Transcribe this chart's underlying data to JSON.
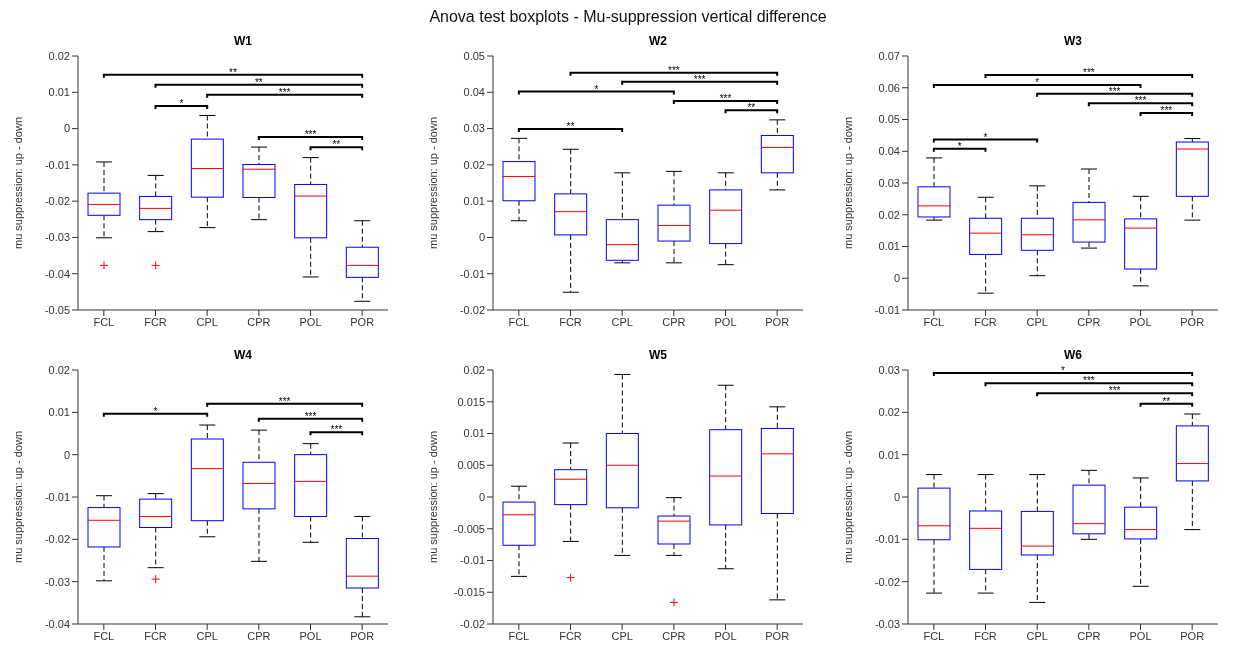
{
  "chart_data": [
    {
      "type": "box",
      "title": "W1",
      "ylabel": "mu suppression: up - down",
      "categories": [
        "FCL",
        "FCR",
        "CPL",
        "CPR",
        "POL",
        "POR"
      ],
      "ylim": [
        -0.05,
        0.02
      ],
      "yticks": [
        -0.05,
        -0.04,
        -0.03,
        -0.02,
        -0.01,
        0,
        0.01,
        0.02
      ],
      "series": [
        {
          "color": "#0000ff",
          "boxes": [
            {
              "low": -0.0301,
              "q1": -0.0239,
              "median": -0.0209,
              "q3": -0.0178,
              "high": -0.0092,
              "outliers": [
                -0.0377
              ]
            },
            {
              "low": -0.0284,
              "q1": -0.0251,
              "median": -0.022,
              "q3": -0.0187,
              "high": -0.0129,
              "outliers": [
                -0.0377
              ]
            },
            {
              "low": -0.0273,
              "q1": -0.0189,
              "median": -0.011,
              "q3": -0.0029,
              "high": 0.0036
            },
            {
              "low": -0.0251,
              "q1": -0.019,
              "median": -0.0112,
              "q3": -0.0099,
              "high": -0.0051
            },
            {
              "low": -0.0409,
              "q1": -0.0301,
              "median": -0.0186,
              "q3": -0.0154,
              "high": -0.008
            },
            {
              "low": -0.0476,
              "q1": -0.041,
              "median": -0.0377,
              "q3": -0.0327,
              "high": -0.0254
            }
          ]
        }
      ],
      "annotations": [
        "Anova test boxplots - Mu-suppression vertical difference",
        "**",
        "**",
        "***",
        "*",
        "***",
        "**"
      ]
    },
    {
      "type": "box",
      "title": "W2",
      "ylabel": "mu suppression: up - down",
      "categories": [
        "FCL",
        "FCR",
        "CPL",
        "CPR",
        "POL",
        "POR"
      ],
      "ylim": [
        -0.02,
        0.05
      ],
      "yticks": [
        -0.02,
        -0.01,
        0,
        0.01,
        0.02,
        0.03,
        0.04,
        0.05
      ],
      "series": [
        {
          "color": "#0000ff",
          "boxes": [
            {
              "low": 0.0046,
              "q1": 0.0101,
              "median": 0.0168,
              "q3": 0.0209,
              "high": 0.0273
            },
            {
              "low": -0.0151,
              "q1": 0.0007,
              "median": 0.0071,
              "q3": 0.012,
              "high": 0.0243
            },
            {
              "low": -0.007,
              "q1": -0.0063,
              "median": -0.002,
              "q3": 0.0049,
              "high": 0.0178
            },
            {
              "low": -0.007,
              "q1": -0.001,
              "median": 0.0033,
              "q3": 0.0089,
              "high": 0.0182
            },
            {
              "low": -0.0075,
              "q1": -0.0017,
              "median": 0.0075,
              "q3": 0.0131,
              "high": 0.0178
            },
            {
              "low": 0.0131,
              "q1": 0.0178,
              "median": 0.0248,
              "q3": 0.0281,
              "high": 0.0324
            }
          ]
        }
      ],
      "annotations": [
        "***",
        "***",
        "*",
        "***",
        "**",
        "**"
      ]
    },
    {
      "type": "box",
      "title": "W3",
      "ylabel": "mu suppression: up - down",
      "categories": [
        "FCL",
        "FCR",
        "CPL",
        "CPR",
        "POL",
        "POR"
      ],
      "ylim": [
        -0.01,
        0.07
      ],
      "yticks": [
        -0.01,
        0,
        0.01,
        0.02,
        0.03,
        0.04,
        0.05,
        0.06,
        0.07
      ],
      "series": [
        {
          "color": "#0000ff",
          "boxes": [
            {
              "low": 0.0183,
              "q1": 0.0193,
              "median": 0.0228,
              "q3": 0.0288,
              "high": 0.0379
            },
            {
              "low": -0.0047,
              "q1": 0.0075,
              "median": 0.0142,
              "q3": 0.0189,
              "high": 0.0255
            },
            {
              "low": 0.0008,
              "q1": 0.0088,
              "median": 0.0137,
              "q3": 0.0189,
              "high": 0.0291
            },
            {
              "low": 0.0095,
              "q1": 0.0114,
              "median": 0.0184,
              "q3": 0.0239,
              "high": 0.0344
            },
            {
              "low": -0.0024,
              "q1": 0.0029,
              "median": 0.0158,
              "q3": 0.0187,
              "high": 0.0258
            },
            {
              "low": 0.0183,
              "q1": 0.0258,
              "median": 0.0407,
              "q3": 0.0429,
              "high": 0.044
            }
          ]
        }
      ],
      "annotations": [
        "***",
        "*",
        "***",
        "***",
        "***",
        "*",
        "*"
      ]
    },
    {
      "type": "box",
      "title": "W4",
      "ylabel": "mu suppression: up - down",
      "categories": [
        "FCL",
        "FCR",
        "CPL",
        "CPR",
        "POL",
        "POR"
      ],
      "ylim": [
        -0.04,
        0.02
      ],
      "yticks": [
        -0.04,
        -0.03,
        -0.02,
        -0.01,
        0,
        0.01,
        0.02
      ],
      "series": [
        {
          "color": "#0000ff",
          "boxes": [
            {
              "low": -0.0298,
              "q1": -0.0218,
              "median": -0.0155,
              "q3": -0.0125,
              "high": -0.0097
            },
            {
              "low": -0.0267,
              "q1": -0.0172,
              "median": -0.0146,
              "q3": -0.0105,
              "high": -0.0092,
              "outliers": [
                -0.0294
              ]
            },
            {
              "low": -0.0194,
              "q1": -0.0156,
              "median": -0.0033,
              "q3": 0.0037,
              "high": 0.007
            },
            {
              "low": -0.0252,
              "q1": -0.0128,
              "median": -0.0068,
              "q3": -0.0018,
              "high": 0.0058
            },
            {
              "low": -0.0207,
              "q1": -0.0146,
              "median": -0.0063,
              "q3": 0,
              "high": 0.0026
            },
            {
              "low": -0.0383,
              "q1": -0.0315,
              "median": -0.0287,
              "q3": -0.0198,
              "high": -0.0146
            }
          ]
        }
      ],
      "annotations": [
        "***",
        "*",
        "***",
        "***"
      ]
    },
    {
      "type": "box",
      "title": "W5",
      "ylabel": "mu suppression: up - down",
      "categories": [
        "FCL",
        "FCR",
        "CPL",
        "CPR",
        "POL",
        "POR"
      ],
      "ylim": [
        -0.02,
        0.02
      ],
      "yticks": [
        -0.02,
        -0.015,
        -0.01,
        -0.005,
        0,
        0.005,
        0.01,
        0.015,
        0.02
      ],
      "series": [
        {
          "color": "#0000ff",
          "boxes": [
            {
              "low": -0.0125,
              "q1": -0.0076,
              "median": -0.0028,
              "q3": -0.0008,
              "high": 0.0017
            },
            {
              "low": -0.007,
              "q1": -0.0012,
              "median": 0.0028,
              "q3": 0.0043,
              "high": 0.0085,
              "outliers": [
                -0.0127
              ]
            },
            {
              "low": -0.0092,
              "q1": -0.0017,
              "median": 0.005,
              "q3": 0.01,
              "high": 0.0193
            },
            {
              "low": -0.0092,
              "q1": -0.0074,
              "median": -0.0038,
              "q3": -0.003,
              "high": -0.0001,
              "outliers": [
                -0.0166
              ]
            },
            {
              "low": -0.0113,
              "q1": -0.0044,
              "median": 0.0033,
              "q3": 0.0106,
              "high": 0.0176
            },
            {
              "low": -0.0162,
              "q1": -0.0026,
              "median": 0.0068,
              "q3": 0.0108,
              "high": 0.0142
            }
          ]
        }
      ]
    },
    {
      "type": "box",
      "title": "W6",
      "ylabel": "mu suppression: up - down",
      "categories": [
        "FCL",
        "FCR",
        "CPL",
        "CPR",
        "POL",
        "POR"
      ],
      "ylim": [
        -0.03,
        0.03
      ],
      "yticks": [
        -0.03,
        -0.02,
        -0.01,
        0,
        0.01,
        0.02,
        0.03
      ],
      "series": [
        {
          "color": "#0000ff",
          "boxes": [
            {
              "low": -0.0227,
              "q1": -0.0101,
              "median": -0.0068,
              "q3": 0.0021,
              "high": 0.0053
            },
            {
              "low": -0.0227,
              "q1": -0.0171,
              "median": -0.0074,
              "q3": -0.0033,
              "high": 0.0053
            },
            {
              "low": -0.0249,
              "q1": -0.0137,
              "median": -0.0116,
              "q3": -0.0034,
              "high": 0.0053
            },
            {
              "low": -0.01,
              "q1": -0.0087,
              "median": -0.0063,
              "q3": 0.0028,
              "high": 0.0063
            },
            {
              "low": -0.0211,
              "q1": -0.0099,
              "median": -0.0077,
              "q3": -0.0024,
              "high": 0.0045
            },
            {
              "low": -0.0077,
              "q1": 0.0038,
              "median": 0.0079,
              "q3": 0.0168,
              "high": 0.0196
            }
          ]
        }
      ],
      "annotations": [
        "*",
        "***",
        "***",
        "**"
      ]
    }
  ]
}
